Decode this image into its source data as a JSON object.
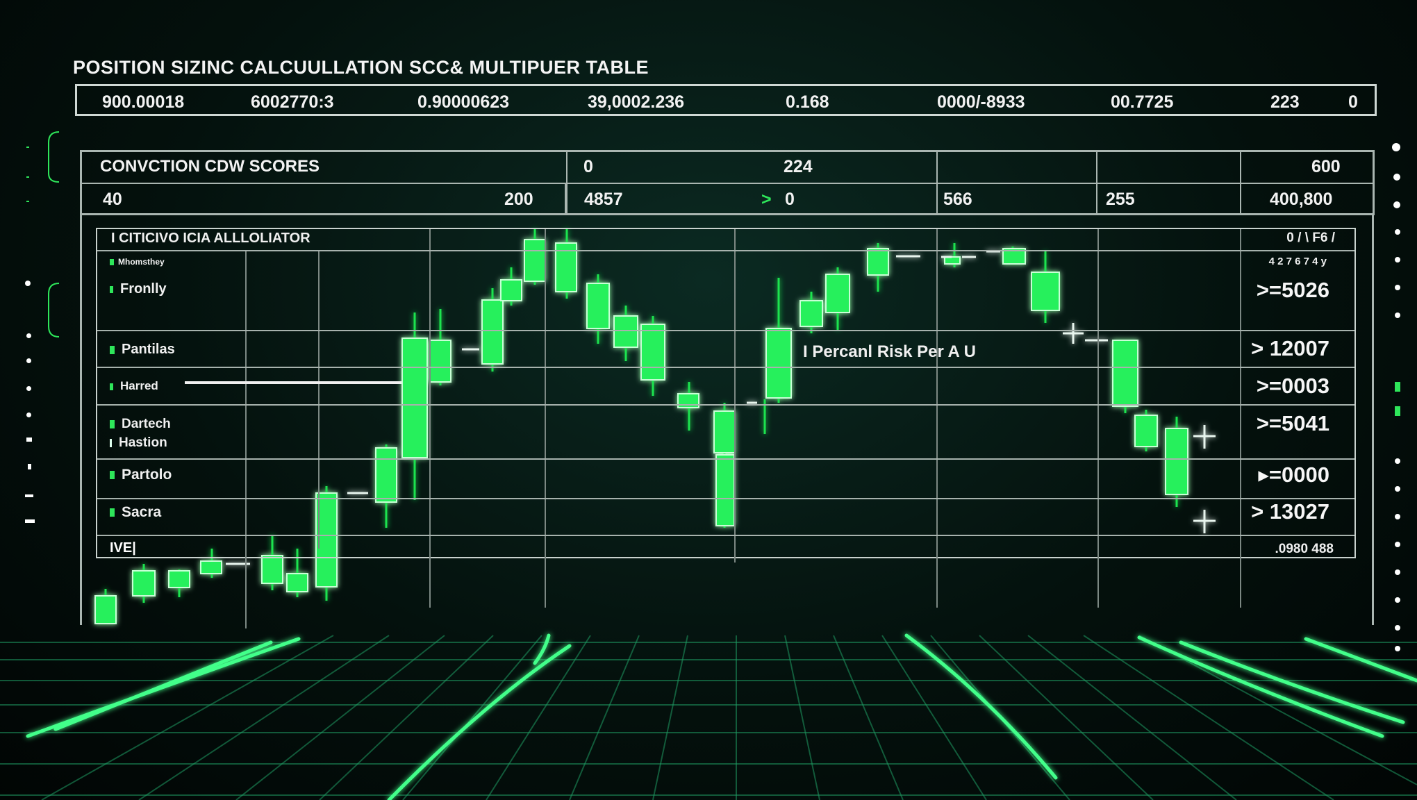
{
  "title": "POSITION SIZINC CALCUULLATION SCC& MULTIPUER TABLE",
  "header_values": [
    "900.00018",
    "6002770:3",
    "0.90000623",
    "39,0002.236",
    "0.168",
    "0000/-8933",
    "00.7725",
    "223",
    "0"
  ],
  "conviction_table": {
    "label": "CONVCTION CDW SCORES",
    "row1": [
      "0",
      "224",
      "600"
    ],
    "row2": [
      "40",
      "200",
      "4857",
      "0",
      "566",
      "255",
      "400,800"
    ],
    "row2_arrow": ">"
  },
  "allocator": {
    "title": "I CITICIVO ICIA ALLLOLIATOR",
    "top_right": "0 / \\ F6 /",
    "sub_right": "4 2 7 6  7 4 y",
    "sub_label": "Mhomsthey",
    "rows": [
      {
        "label": "Fronlly",
        "value": ">=5026"
      },
      {
        "label": "Pantilas",
        "value": "> 12007"
      },
      {
        "label": "Harred",
        "value": ">=0003"
      },
      {
        "label": "Dartech",
        "label2": "Hastion",
        "value": ">=5041"
      },
      {
        "label": "Partolo",
        "value": "▸=0000"
      },
      {
        "label": "Sacra",
        "value": "> 13027"
      }
    ],
    "footer_left": "IVE|",
    "footer_right": ".0980 488",
    "risk_label": "I Percanl Risk  Per A U"
  },
  "colors": {
    "accent_green": "#27f05b",
    "candle_border": "#b9ffca",
    "grid": "#a7b2ad",
    "background": "#04110d"
  }
}
